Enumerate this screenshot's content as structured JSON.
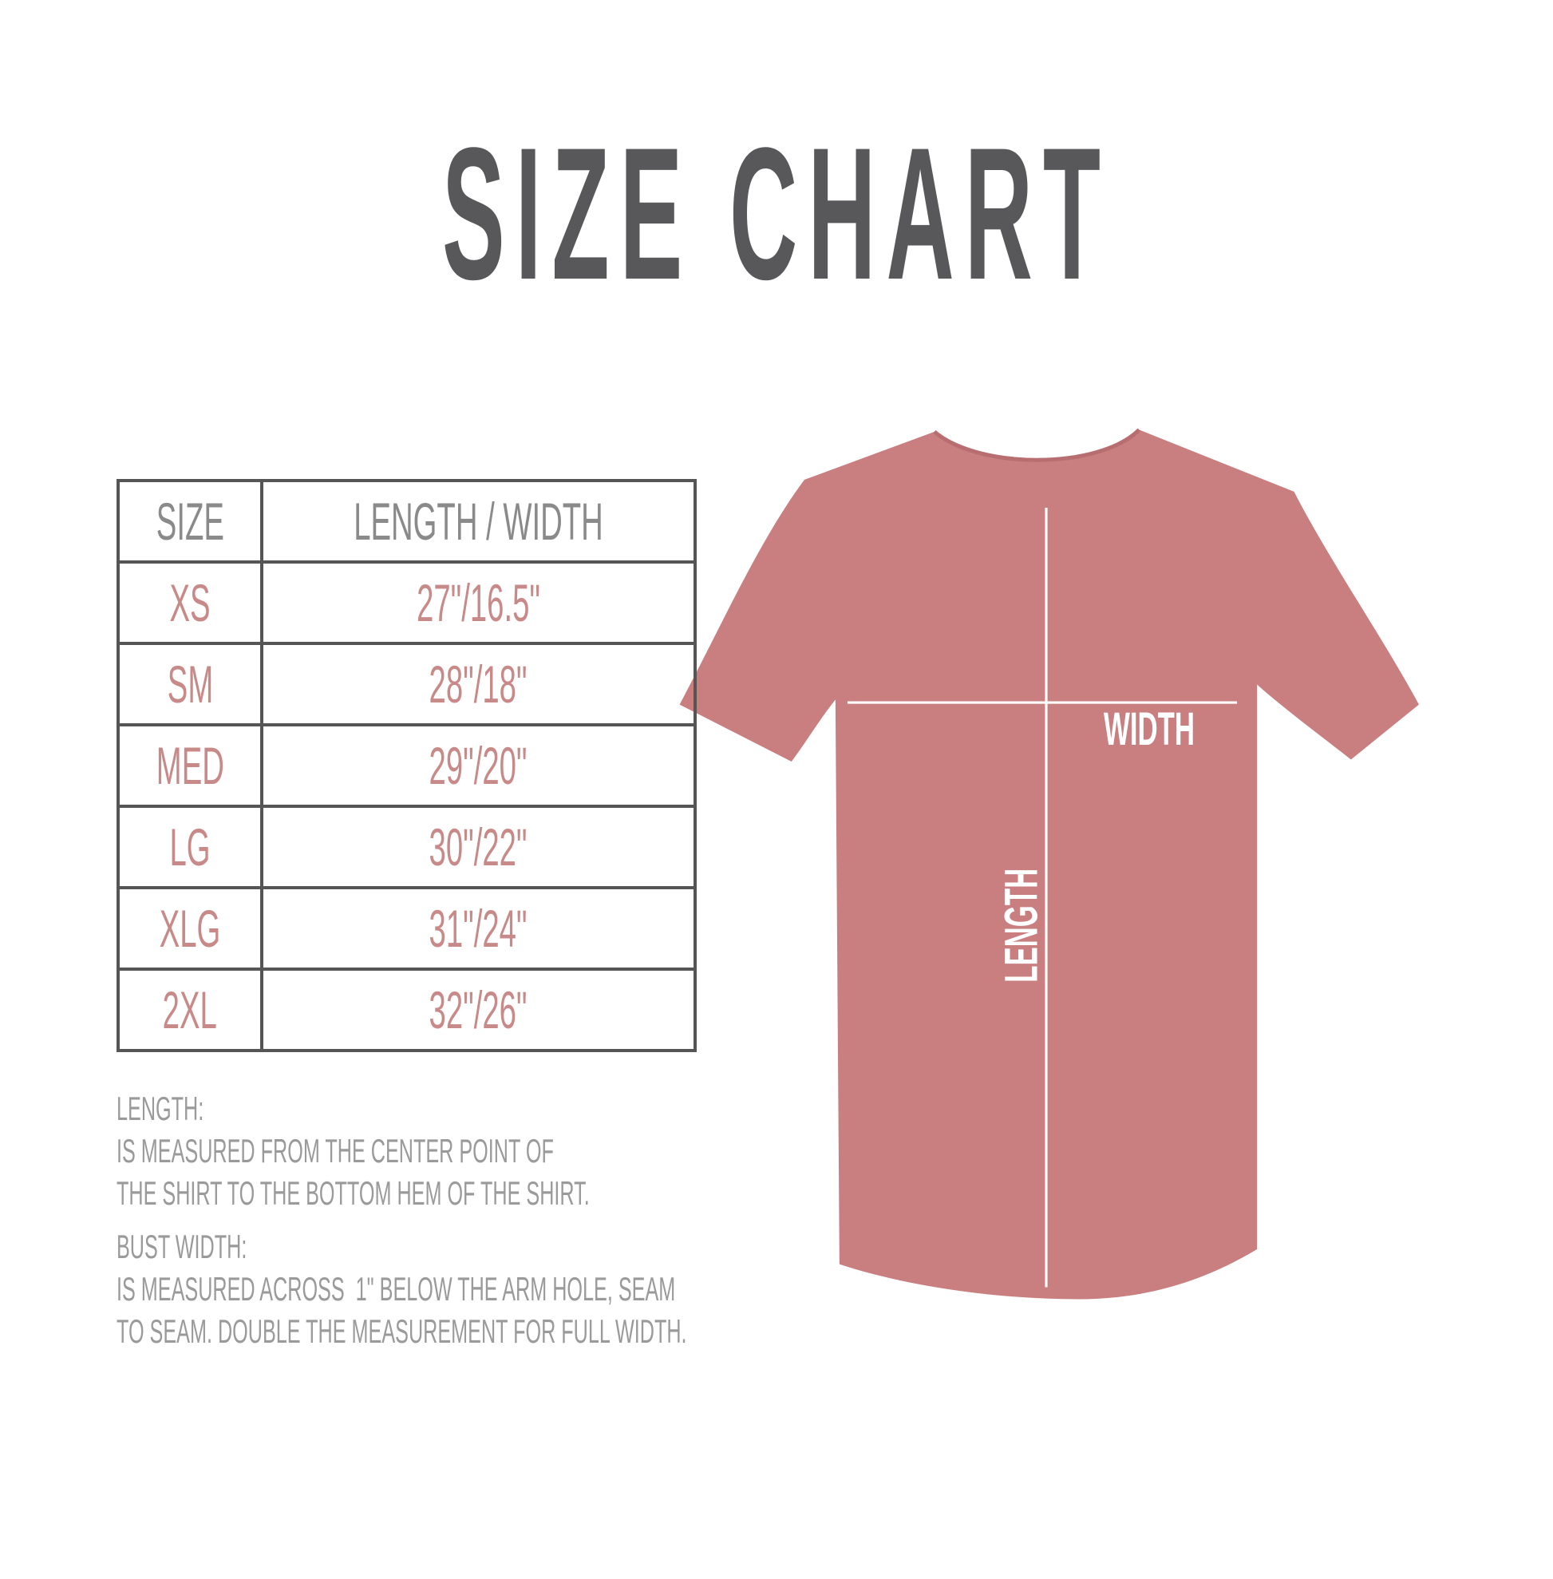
{
  "title": "SIZE CHART",
  "colors": {
    "title": "#58585a",
    "size_text": "#c88a88",
    "header_text": "#8a8a8a",
    "notes_text": "#9a9a9a",
    "shirt": "#c97e80",
    "border": "#555555"
  },
  "table": {
    "headers": [
      "SIZE",
      "LENGTH / WIDTH"
    ],
    "rows": [
      {
        "size": "XS",
        "measure": "27\"/16.5\""
      },
      {
        "size": "SM",
        "measure": "28\"/18\""
      },
      {
        "size": "MED",
        "measure": "29\"/20\""
      },
      {
        "size": "LG",
        "measure": "30\"/22\""
      },
      {
        "size": "XLG",
        "measure": "31\"/24\""
      },
      {
        "size": "2XL",
        "measure": "32\"/26\""
      }
    ]
  },
  "notes": {
    "length_heading": "LENGTH:",
    "length_lines": [
      "IS MEASURED FROM THE CENTER POINT OF",
      "THE SHIRT TO THE BOTTOM HEM OF THE SHIRT."
    ],
    "width_heading": "BUST WIDTH:",
    "width_lines": [
      "IS MEASURED ACROSS  1\" BELOW THE ARM HOLE, SEAM",
      "TO SEAM. DOUBLE THE MEASUREMENT FOR FULL WIDTH."
    ]
  },
  "shirt": {
    "width_label": "WIDTH",
    "length_label": "LENGTH",
    "image": "t-shirt-icon"
  }
}
